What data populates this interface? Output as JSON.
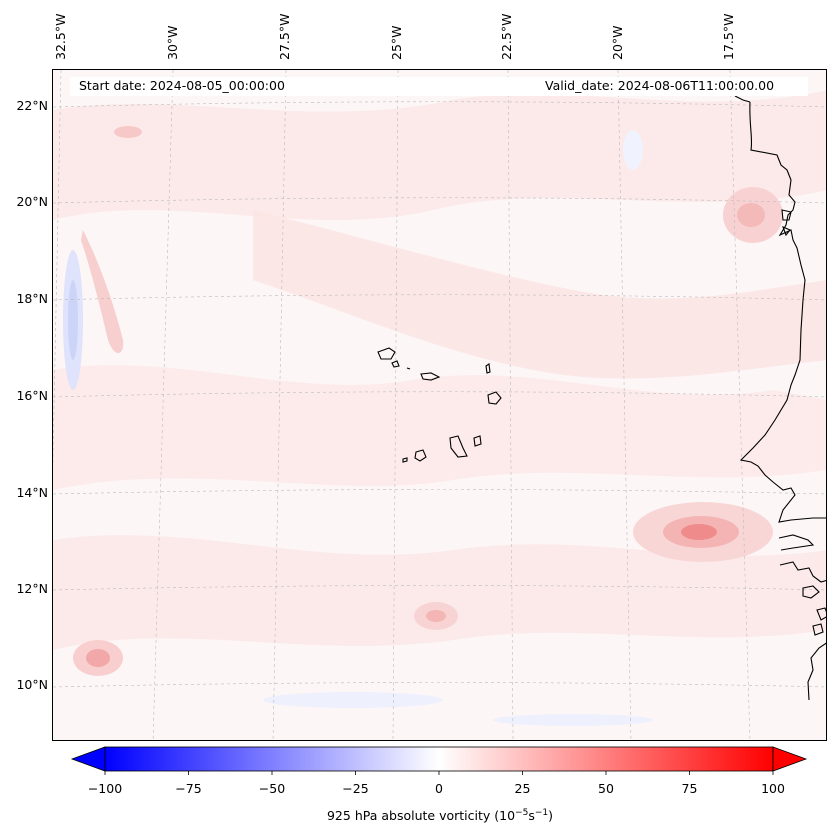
{
  "header": {
    "start_date": "Start date: 2024-08-05_00:00:00",
    "valid_date": "Valid_date: 2024-08-06T11:00:00.00"
  },
  "axes": {
    "latitudes": [
      "22°N",
      "20°N",
      "18°N",
      "16°N",
      "14°N",
      "12°N",
      "10°N"
    ],
    "longitudes": [
      "32.5°W",
      "30°W",
      "27.5°W",
      "25°W",
      "22.5°W",
      "20°W",
      "17.5°W"
    ]
  },
  "colorbar": {
    "ticks": [
      "−100",
      "−75",
      "−50",
      "−25",
      "0",
      "25",
      "50",
      "75",
      "100"
    ],
    "label_main": "925 hPa absolute vorticity (10",
    "label_exp1": "−5",
    "label_mid": "s",
    "label_exp2": "−1",
    "label_end": ")",
    "neg_color": "#0000ff",
    "zero_color": "#ffffff",
    "pos_color": "#ff0000"
  },
  "map_colors": {
    "ocean_base": "#fdf7f7",
    "light_pink": "#fbe4e4",
    "mid_pink": "#f8cccc",
    "strong_red": "#f29a9a",
    "light_blue": "#e6e9fc",
    "coastline": "#000000"
  }
}
